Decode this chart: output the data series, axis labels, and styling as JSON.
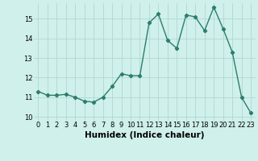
{
  "x": [
    0,
    1,
    2,
    3,
    4,
    5,
    6,
    7,
    8,
    9,
    10,
    11,
    12,
    13,
    14,
    15,
    16,
    17,
    18,
    19,
    20,
    21,
    22,
    23
  ],
  "y": [
    11.3,
    11.1,
    11.1,
    11.15,
    11.0,
    10.8,
    10.75,
    11.0,
    11.55,
    12.2,
    12.1,
    12.1,
    14.8,
    15.25,
    13.9,
    13.5,
    15.2,
    15.1,
    14.4,
    15.6,
    14.5,
    13.3,
    11.0,
    10.2
  ],
  "line_color": "#2d7d6e",
  "marker": "D",
  "marker_size": 2.2,
  "bg_color": "#cff0eb",
  "grid_color": "#b0d8d2",
  "xlabel": "Humidex (Indice chaleur)",
  "ylim": [
    9.8,
    15.8
  ],
  "xlim": [
    -0.5,
    23.5
  ],
  "yticks": [
    10,
    11,
    12,
    13,
    14,
    15
  ],
  "xticks": [
    0,
    1,
    2,
    3,
    4,
    5,
    6,
    7,
    8,
    9,
    10,
    11,
    12,
    13,
    14,
    15,
    16,
    17,
    18,
    19,
    20,
    21,
    22,
    23
  ],
  "tick_fontsize": 6,
  "xlabel_fontsize": 7.5,
  "line_width": 1.0
}
